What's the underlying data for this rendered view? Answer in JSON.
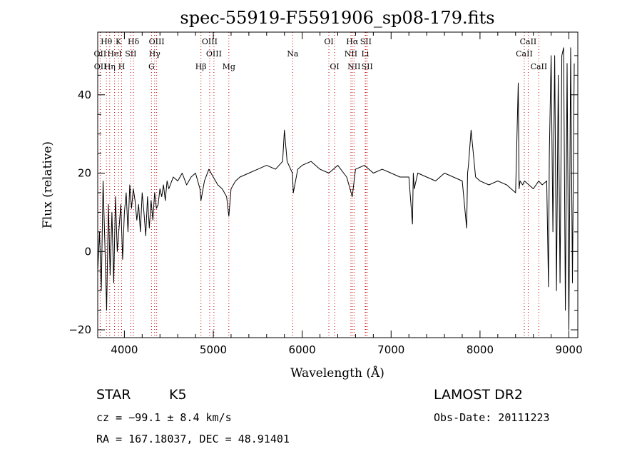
{
  "chart_data": {
    "type": "line",
    "title": "spec-55919-F5591906_sp08-179.fits",
    "xlabel": "Wavelength (Å)",
    "ylabel": "Flux (relative)",
    "xlim": [
      3700,
      9100
    ],
    "ylim": [
      -22,
      56
    ],
    "x_ticks": [
      4000,
      5000,
      6000,
      7000,
      8000,
      9000
    ],
    "y_ticks": [
      -20,
      0,
      20,
      40
    ],
    "grid": false,
    "series": [
      {
        "color": "#000000",
        "x": [
          3700,
          3720,
          3740,
          3760,
          3780,
          3800,
          3820,
          3840,
          3860,
          3880,
          3900,
          3920,
          3940,
          3960,
          3980,
          4000,
          4020,
          4040,
          4060,
          4080,
          4100,
          4120,
          4140,
          4160,
          4180,
          4200,
          4220,
          4240,
          4260,
          4280,
          4300,
          4320,
          4340,
          4360,
          4380,
          4400,
          4420,
          4440,
          4460,
          4480,
          4500,
          4550,
          4600,
          4650,
          4700,
          4750,
          4800,
          4850,
          4861,
          4900,
          4950,
          5000,
          5050,
          5100,
          5150,
          5175,
          5200,
          5250,
          5300,
          5400,
          5500,
          5600,
          5700,
          5780,
          5800,
          5830,
          5890,
          5900,
          5950,
          6000,
          6100,
          6200,
          6300,
          6400,
          6500,
          6563,
          6600,
          6700,
          6800,
          6900,
          7000,
          7100,
          7200,
          7240,
          7250,
          7260,
          7300,
          7400,
          7500,
          7600,
          7700,
          7800,
          7850,
          7860,
          7870,
          7900,
          7950,
          8000,
          8100,
          8200,
          8300,
          8400,
          8430,
          8440,
          8450,
          8480,
          8500,
          8550,
          8600,
          8660,
          8700,
          8750,
          8770,
          8780,
          8800,
          8820,
          8840,
          8860,
          8880,
          8900,
          8920,
          8940,
          8960,
          8980,
          9000,
          9020,
          9040,
          9060
        ],
        "values": [
          -5,
          5,
          -10,
          18,
          2,
          -15,
          12,
          -6,
          10,
          -8,
          14,
          0,
          6,
          12,
          -2,
          10,
          15,
          5,
          17,
          11,
          16,
          13,
          8,
          12,
          5,
          15,
          10,
          4,
          14,
          6,
          13,
          8,
          15,
          11,
          12,
          16,
          14,
          17,
          13,
          18,
          16,
          19,
          18,
          20,
          17,
          19,
          20,
          16,
          13,
          18,
          21,
          19,
          17,
          16,
          14,
          9,
          16,
          18,
          19,
          20,
          21,
          22,
          21,
          23,
          31,
          23,
          20,
          15,
          21,
          22,
          23,
          21,
          20,
          22,
          19,
          14,
          21,
          22,
          20,
          21,
          20,
          19,
          19,
          7,
          20,
          16,
          20,
          19,
          18,
          20,
          19,
          18,
          6,
          20,
          22,
          31,
          19,
          18,
          17,
          18,
          17,
          15,
          43,
          16,
          18,
          17,
          18,
          17,
          16,
          18,
          17,
          18,
          -9,
          25,
          50,
          5,
          50,
          -10,
          45,
          -8,
          50,
          52,
          -15,
          48,
          -20,
          52,
          -8,
          48
        ]
      }
    ],
    "spectral_lines": [
      {
        "label": "Hθ",
        "x": 3798,
        "row": 0
      },
      {
        "label": "K",
        "x": 3934,
        "row": 0
      },
      {
        "label": "Hδ",
        "x": 4102,
        "row": 0
      },
      {
        "label": "OIII",
        "x": 4363,
        "row": 0
      },
      {
        "label": "OIII",
        "x": 4959,
        "row": 0
      },
      {
        "label": "OI",
        "x": 6300,
        "row": 0
      },
      {
        "label": "Hα",
        "x": 6563,
        "row": 0
      },
      {
        "label": "SII",
        "x": 6716,
        "row": 0
      },
      {
        "label": "CaII",
        "x": 8542,
        "row": 0
      },
      {
        "label": "OII",
        "x": 3727,
        "row": 1
      },
      {
        "label": "HeI",
        "x": 3889,
        "row": 1
      },
      {
        "label": "SII",
        "x": 4072,
        "row": 1
      },
      {
        "label": "Hγ",
        "x": 4340,
        "row": 1
      },
      {
        "label": "OIII",
        "x": 5007,
        "row": 1
      },
      {
        "label": "Na",
        "x": 5893,
        "row": 1
      },
      {
        "label": "NII",
        "x": 6548,
        "row": 1
      },
      {
        "label": "Li",
        "x": 6708,
        "row": 1
      },
      {
        "label": "CaII",
        "x": 8498,
        "row": 1
      },
      {
        "label": "OII",
        "x": 3729,
        "row": 2
      },
      {
        "label": "Hη",
        "x": 3835,
        "row": 2
      },
      {
        "label": "H",
        "x": 3969,
        "row": 2
      },
      {
        "label": "G",
        "x": 4305,
        "row": 2
      },
      {
        "label": "Hβ",
        "x": 4861,
        "row": 2
      },
      {
        "label": "Mg",
        "x": 5175,
        "row": 2
      },
      {
        "label": "OI",
        "x": 6364,
        "row": 2
      },
      {
        "label": "NII",
        "x": 6583,
        "row": 2
      },
      {
        "label": "SII",
        "x": 6731,
        "row": 2
      },
      {
        "label": "CaII",
        "x": 8662,
        "row": 2
      }
    ]
  },
  "info": {
    "object_class": "STAR",
    "subclass": "K5",
    "survey": "LAMOST DR2",
    "redshift": "cz = −99.1 ± 8.4 km/s",
    "obs_date": "Obs-Date: 20111223",
    "coords": "RA = 167.18037, DEC =  48.91401"
  },
  "colors": {
    "line_marker": "#cc0000",
    "spectrum": "#000000",
    "axes": "#000000"
  }
}
